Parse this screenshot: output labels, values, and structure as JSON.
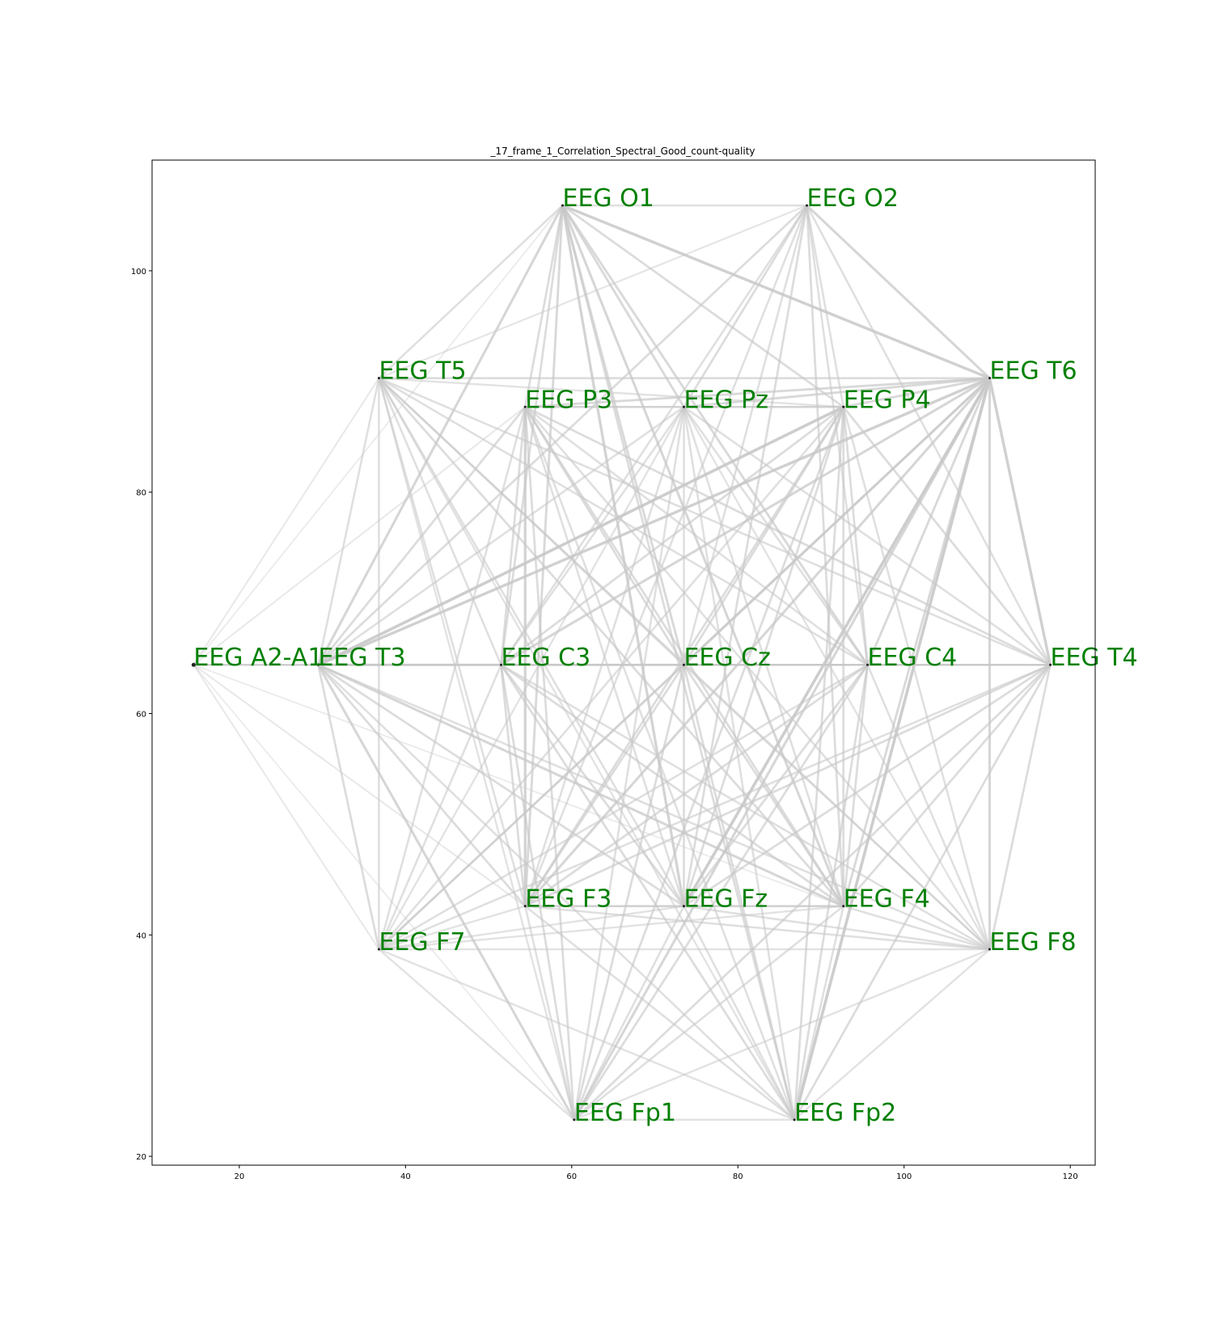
{
  "title": "_17_frame_1_Correlation_Spectral_Good_count-quality",
  "colors": {
    "label": "#008000",
    "edge": "#c8c8c8",
    "marker": "#222222",
    "background": "#ffffff"
  },
  "chart_data": {
    "type": "network",
    "xlim": [
      9.5,
      123
    ],
    "ylim": [
      19.2,
      110
    ],
    "xticks": [
      20,
      40,
      60,
      80,
      100,
      120
    ],
    "yticks": [
      20,
      40,
      60,
      80,
      100
    ],
    "grid": false,
    "nodes": [
      {
        "id": "A2A1",
        "label": "EEG A2-A1",
        "x": 14.5,
        "y": 64.4
      },
      {
        "id": "T3",
        "label": "EEG T3",
        "x": 29.5,
        "y": 64.4
      },
      {
        "id": "C3",
        "label": "EEG C3",
        "x": 51.5,
        "y": 64.4
      },
      {
        "id": "Cz",
        "label": "EEG Cz",
        "x": 73.5,
        "y": 64.4
      },
      {
        "id": "C4",
        "label": "EEG C4",
        "x": 95.6,
        "y": 64.4
      },
      {
        "id": "T4",
        "label": "EEG T4",
        "x": 117.6,
        "y": 64.4
      },
      {
        "id": "O1",
        "label": "EEG O1",
        "x": 58.9,
        "y": 105.9
      },
      {
        "id": "O2",
        "label": "EEG O2",
        "x": 88.3,
        "y": 105.9
      },
      {
        "id": "T5",
        "label": "EEG T5",
        "x": 36.8,
        "y": 90.3
      },
      {
        "id": "T6",
        "label": "EEG T6",
        "x": 110.3,
        "y": 90.3
      },
      {
        "id": "P3",
        "label": "EEG P3",
        "x": 54.4,
        "y": 87.7
      },
      {
        "id": "Pz",
        "label": "EEG Pz",
        "x": 73.5,
        "y": 87.7
      },
      {
        "id": "P4",
        "label": "EEG P4",
        "x": 92.7,
        "y": 87.7
      },
      {
        "id": "F3",
        "label": "EEG F3",
        "x": 54.4,
        "y": 42.6
      },
      {
        "id": "Fz",
        "label": "EEG Fz",
        "x": 73.5,
        "y": 42.6
      },
      {
        "id": "F4",
        "label": "EEG F4",
        "x": 92.7,
        "y": 42.6
      },
      {
        "id": "F7",
        "label": "EEG F7",
        "x": 36.8,
        "y": 38.7
      },
      {
        "id": "F8",
        "label": "EEG F8",
        "x": 110.3,
        "y": 38.7
      },
      {
        "id": "Fp1",
        "label": "EEG Fp1",
        "x": 60.3,
        "y": 23.3
      },
      {
        "id": "Fp2",
        "label": "EEG Fp2",
        "x": 86.8,
        "y": 23.3
      }
    ],
    "edges": [
      {
        "source": "O1",
        "target": "T6",
        "strength": 0.55
      },
      {
        "source": "P4",
        "target": "T3",
        "strength": 0.6
      },
      {
        "source": "T6",
        "target": "T3",
        "strength": 0.55
      },
      {
        "source": "T6",
        "target": "Fz",
        "strength": 0.6
      },
      {
        "source": "T6",
        "target": "Fp2",
        "strength": 0.6
      },
      {
        "source": "T6",
        "target": "T4",
        "strength": 0.55
      },
      {
        "source": "O1",
        "target": "Fz",
        "strength": 0.5
      },
      {
        "source": "O1",
        "target": "F4",
        "strength": 0.45
      },
      {
        "source": "O1",
        "target": "T3",
        "strength": 0.45
      },
      {
        "source": "O2",
        "target": "T6",
        "strength": 0.45
      },
      {
        "source": "P3",
        "target": "F3",
        "strength": 0.5
      },
      {
        "source": "T6",
        "target": "C3",
        "strength": 0.45
      },
      {
        "source": "T6",
        "target": "F3",
        "strength": 0.45
      },
      {
        "source": "T3",
        "target": "Fp1",
        "strength": 0.45
      },
      {
        "source": "T3",
        "target": "F4",
        "strength": 0.45
      },
      {
        "source": "O1",
        "target": "Pz",
        "strength": 0.4
      },
      {
        "source": "O1",
        "target": "C4",
        "strength": 0.4
      },
      {
        "source": "O1",
        "target": "F3",
        "strength": 0.4
      },
      {
        "source": "O1",
        "target": "Cz",
        "strength": 0.4
      },
      {
        "source": "O1",
        "target": "P4",
        "strength": 0.35
      },
      {
        "source": "O1",
        "target": "Fp2",
        "strength": 0.35
      },
      {
        "source": "O1",
        "target": "C3",
        "strength": 0.35
      },
      {
        "source": "O1",
        "target": "P3",
        "strength": 0.35
      },
      {
        "source": "O1",
        "target": "O2",
        "strength": 0.3
      },
      {
        "source": "O1",
        "target": "T5",
        "strength": 0.3
      },
      {
        "source": "O2",
        "target": "T3",
        "strength": 0.35
      },
      {
        "source": "O2",
        "target": "Pz",
        "strength": 0.35
      },
      {
        "source": "O2",
        "target": "Fz",
        "strength": 0.35
      },
      {
        "source": "O2",
        "target": "F4",
        "strength": 0.35
      },
      {
        "source": "O2",
        "target": "C4",
        "strength": 0.3
      },
      {
        "source": "O2",
        "target": "P4",
        "strength": 0.3
      },
      {
        "source": "O2",
        "target": "Cz",
        "strength": 0.3
      },
      {
        "source": "O2",
        "target": "F3",
        "strength": 0.3
      },
      {
        "source": "O2",
        "target": "C3",
        "strength": 0.3
      },
      {
        "source": "O2",
        "target": "T4",
        "strength": 0.3
      },
      {
        "source": "O2",
        "target": "T5",
        "strength": 0.2
      },
      {
        "source": "T6",
        "target": "Pz",
        "strength": 0.4
      },
      {
        "source": "T6",
        "target": "P3",
        "strength": 0.4
      },
      {
        "source": "T6",
        "target": "P4",
        "strength": 0.4
      },
      {
        "source": "T6",
        "target": "Cz",
        "strength": 0.45
      },
      {
        "source": "T6",
        "target": "C4",
        "strength": 0.4
      },
      {
        "source": "T6",
        "target": "F4",
        "strength": 0.4
      },
      {
        "source": "T6",
        "target": "F8",
        "strength": 0.45
      },
      {
        "source": "T6",
        "target": "Fp1",
        "strength": 0.45
      },
      {
        "source": "T6",
        "target": "F7",
        "strength": 0.35
      },
      {
        "source": "T5",
        "target": "T6",
        "strength": 0.35
      },
      {
        "source": "T5",
        "target": "T3",
        "strength": 0.3
      },
      {
        "source": "T5",
        "target": "F7",
        "strength": 0.3
      },
      {
        "source": "T5",
        "target": "Cz",
        "strength": 0.35
      },
      {
        "source": "T5",
        "target": "C4",
        "strength": 0.3
      },
      {
        "source": "T5",
        "target": "F4",
        "strength": 0.35
      },
      {
        "source": "T5",
        "target": "Fz",
        "strength": 0.3
      },
      {
        "source": "T5",
        "target": "F3",
        "strength": 0.3
      },
      {
        "source": "T5",
        "target": "C3",
        "strength": 0.3
      },
      {
        "source": "T5",
        "target": "T4",
        "strength": 0.3
      },
      {
        "source": "T5",
        "target": "F8",
        "strength": 0.25
      },
      {
        "source": "T5",
        "target": "P4",
        "strength": 0.25
      },
      {
        "source": "T5",
        "target": "Fp2",
        "strength": 0.25
      },
      {
        "source": "T5",
        "target": "Fp1",
        "strength": 0.25
      },
      {
        "source": "T5",
        "target": "A2A1",
        "strength": 0.15
      },
      {
        "source": "P3",
        "target": "Pz",
        "strength": 0.3
      },
      {
        "source": "P3",
        "target": "P4",
        "strength": 0.3
      },
      {
        "source": "P3",
        "target": "T3",
        "strength": 0.35
      },
      {
        "source": "P3",
        "target": "C3",
        "strength": 0.35
      },
      {
        "source": "P3",
        "target": "Cz",
        "strength": 0.35
      },
      {
        "source": "P3",
        "target": "C4",
        "strength": 0.3
      },
      {
        "source": "P3",
        "target": "T4",
        "strength": 0.35
      },
      {
        "source": "P3",
        "target": "F7",
        "strength": 0.3
      },
      {
        "source": "P3",
        "target": "Fz",
        "strength": 0.3
      },
      {
        "source": "P3",
        "target": "F4",
        "strength": 0.35
      },
      {
        "source": "P3",
        "target": "F8",
        "strength": 0.3
      },
      {
        "source": "P3",
        "target": "Fp1",
        "strength": 0.35
      },
      {
        "source": "P3",
        "target": "Fp2",
        "strength": 0.3
      },
      {
        "source": "Pz",
        "target": "P4",
        "strength": 0.3
      },
      {
        "source": "Pz",
        "target": "T3",
        "strength": 0.3
      },
      {
        "source": "Pz",
        "target": "C3",
        "strength": 0.3
      },
      {
        "source": "Pz",
        "target": "Cz",
        "strength": 0.3
      },
      {
        "source": "Pz",
        "target": "C4",
        "strength": 0.3
      },
      {
        "source": "Pz",
        "target": "T4",
        "strength": 0.3
      },
      {
        "source": "Pz",
        "target": "F3",
        "strength": 0.3
      },
      {
        "source": "Pz",
        "target": "F4",
        "strength": 0.3
      },
      {
        "source": "Pz",
        "target": "Fp1",
        "strength": 0.3
      },
      {
        "source": "Pz",
        "target": "Fp2",
        "strength": 0.3
      },
      {
        "source": "Pz",
        "target": "F7",
        "strength": 0.25
      },
      {
        "source": "Pz",
        "target": "F8",
        "strength": 0.25
      },
      {
        "source": "P4",
        "target": "C3",
        "strength": 0.35
      },
      {
        "source": "P4",
        "target": "Cz",
        "strength": 0.35
      },
      {
        "source": "P4",
        "target": "C4",
        "strength": 0.35
      },
      {
        "source": "P4",
        "target": "T4",
        "strength": 0.35
      },
      {
        "source": "P4",
        "target": "F3",
        "strength": 0.35
      },
      {
        "source": "P4",
        "target": "Fz",
        "strength": 0.35
      },
      {
        "source": "P4",
        "target": "F4",
        "strength": 0.35
      },
      {
        "source": "P4",
        "target": "F7",
        "strength": 0.3
      },
      {
        "source": "P4",
        "target": "F8",
        "strength": 0.3
      },
      {
        "source": "P4",
        "target": "Fp1",
        "strength": 0.35
      },
      {
        "source": "P4",
        "target": "Fp2",
        "strength": 0.35
      },
      {
        "source": "A2A1",
        "target": "T3",
        "strength": 0.3
      },
      {
        "source": "A2A1",
        "target": "C3",
        "strength": 0.2
      },
      {
        "source": "A2A1",
        "target": "Cz",
        "strength": 0.2
      },
      {
        "source": "A2A1",
        "target": "F7",
        "strength": 0.15
      },
      {
        "source": "A2A1",
        "target": "F3",
        "strength": 0.15
      },
      {
        "source": "A2A1",
        "target": "P3",
        "strength": 0.15
      },
      {
        "source": "A2A1",
        "target": "Fp1",
        "strength": 0.1
      },
      {
        "source": "A2A1",
        "target": "F4",
        "strength": 0.1
      },
      {
        "source": "A2A1",
        "target": "O1",
        "strength": 0.1
      },
      {
        "source": "T3",
        "target": "C3",
        "strength": 0.35
      },
      {
        "source": "T3",
        "target": "Cz",
        "strength": 0.35
      },
      {
        "source": "T3",
        "target": "C4",
        "strength": 0.3
      },
      {
        "source": "T3",
        "target": "T4",
        "strength": 0.3
      },
      {
        "source": "T3",
        "target": "F3",
        "strength": 0.35
      },
      {
        "source": "T3",
        "target": "Fz",
        "strength": 0.35
      },
      {
        "source": "T3",
        "target": "F7",
        "strength": 0.35
      },
      {
        "source": "T3",
        "target": "F8",
        "strength": 0.3
      },
      {
        "source": "T3",
        "target": "Fp2",
        "strength": 0.3
      },
      {
        "source": "C3",
        "target": "Cz",
        "strength": 0.3
      },
      {
        "source": "C3",
        "target": "C4",
        "strength": 0.3
      },
      {
        "source": "C3",
        "target": "T4",
        "strength": 0.3
      },
      {
        "source": "C3",
        "target": "F3",
        "strength": 0.35
      },
      {
        "source": "C3",
        "target": "Fz",
        "strength": 0.35
      },
      {
        "source": "C3",
        "target": "F4",
        "strength": 0.35
      },
      {
        "source": "C3",
        "target": "F7",
        "strength": 0.3
      },
      {
        "source": "C3",
        "target": "F8",
        "strength": 0.3
      },
      {
        "source": "C3",
        "target": "Fp1",
        "strength": 0.35
      },
      {
        "source": "C3",
        "target": "Fp2",
        "strength": 0.35
      },
      {
        "source": "Cz",
        "target": "C4",
        "strength": 0.3
      },
      {
        "source": "Cz",
        "target": "T4",
        "strength": 0.3
      },
      {
        "source": "Cz",
        "target": "F3",
        "strength": 0.35
      },
      {
        "source": "Cz",
        "target": "Fz",
        "strength": 0.35
      },
      {
        "source": "Cz",
        "target": "F4",
        "strength": 0.35
      },
      {
        "source": "Cz",
        "target": "F7",
        "strength": 0.3
      },
      {
        "source": "Cz",
        "target": "F8",
        "strength": 0.3
      },
      {
        "source": "Cz",
        "target": "Fp1",
        "strength": 0.35
      },
      {
        "source": "Cz",
        "target": "Fp2",
        "strength": 0.35
      },
      {
        "source": "C4",
        "target": "T4",
        "strength": 0.3
      },
      {
        "source": "C4",
        "target": "F3",
        "strength": 0.35
      },
      {
        "source": "C4",
        "target": "Fz",
        "strength": 0.35
      },
      {
        "source": "C4",
        "target": "F4",
        "strength": 0.35
      },
      {
        "source": "C4",
        "target": "F7",
        "strength": 0.3
      },
      {
        "source": "C4",
        "target": "F8",
        "strength": 0.3
      },
      {
        "source": "C4",
        "target": "Fp1",
        "strength": 0.35
      },
      {
        "source": "C4",
        "target": "Fp2",
        "strength": 0.35
      },
      {
        "source": "T4",
        "target": "F3",
        "strength": 0.35
      },
      {
        "source": "T4",
        "target": "Fz",
        "strength": 0.35
      },
      {
        "source": "T4",
        "target": "F4",
        "strength": 0.35
      },
      {
        "source": "T4",
        "target": "F7",
        "strength": 0.3
      },
      {
        "source": "T4",
        "target": "F8",
        "strength": 0.35
      },
      {
        "source": "T4",
        "target": "Fp1",
        "strength": 0.35
      },
      {
        "source": "T4",
        "target": "Fp2",
        "strength": 0.35
      },
      {
        "source": "F3",
        "target": "Fz",
        "strength": 0.3
      },
      {
        "source": "F3",
        "target": "F4",
        "strength": 0.3
      },
      {
        "source": "F3",
        "target": "F8",
        "strength": 0.3
      },
      {
        "source": "F3",
        "target": "Fp1",
        "strength": 0.3
      },
      {
        "source": "F3",
        "target": "Fp2",
        "strength": 0.3
      },
      {
        "source": "F3",
        "target": "F7",
        "strength": 0.25
      },
      {
        "source": "Fz",
        "target": "F4",
        "strength": 0.3
      },
      {
        "source": "Fz",
        "target": "F7",
        "strength": 0.25
      },
      {
        "source": "Fz",
        "target": "F8",
        "strength": 0.3
      },
      {
        "source": "Fz",
        "target": "Fp1",
        "strength": 0.3
      },
      {
        "source": "Fz",
        "target": "Fp2",
        "strength": 0.3
      },
      {
        "source": "F4",
        "target": "F7",
        "strength": 0.25
      },
      {
        "source": "F4",
        "target": "F8",
        "strength": 0.3
      },
      {
        "source": "F4",
        "target": "Fp1",
        "strength": 0.3
      },
      {
        "source": "F4",
        "target": "Fp2",
        "strength": 0.3
      },
      {
        "source": "F7",
        "target": "F8",
        "strength": 0.25
      },
      {
        "source": "F7",
        "target": "Fp1",
        "strength": 0.25
      },
      {
        "source": "F7",
        "target": "Fp2",
        "strength": 0.25
      },
      {
        "source": "F8",
        "target": "Fp1",
        "strength": 0.25
      },
      {
        "source": "F8",
        "target": "Fp2",
        "strength": 0.25
      },
      {
        "source": "Fp1",
        "target": "Fp2",
        "strength": 0.25
      }
    ]
  }
}
